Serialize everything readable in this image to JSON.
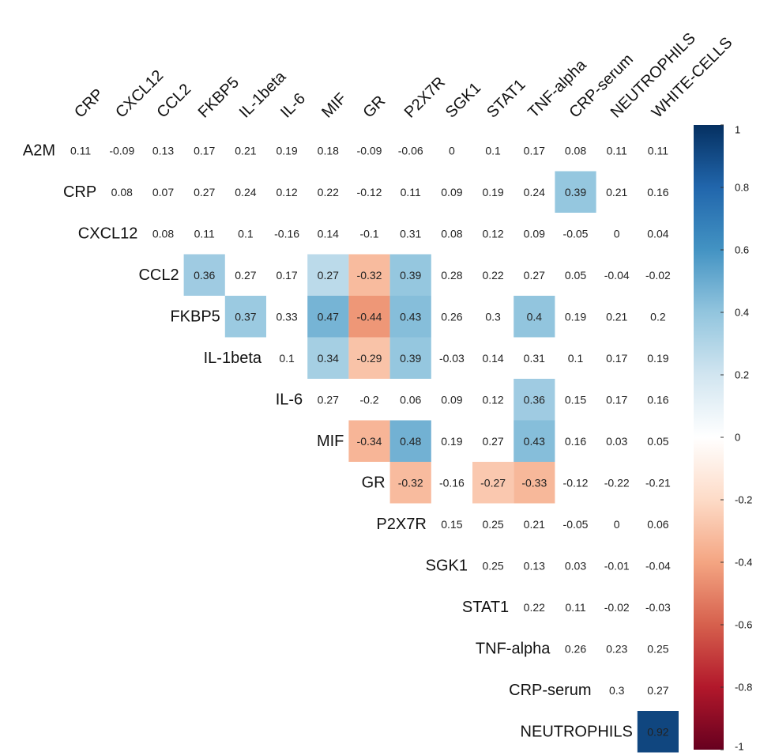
{
  "chart_data": {
    "type": "heatmap",
    "layout": "upper-triangle correlation matrix",
    "columns": [
      "CRP",
      "CXCL12",
      "CCL2",
      "FKBP5",
      "IL-1beta",
      "IL-6",
      "MIF",
      "GR",
      "P2X7R",
      "SGK1",
      "STAT1",
      "TNF-alpha",
      "CRP-serum",
      "NEUTROPHILS",
      "WHITE-CELLS"
    ],
    "rows": [
      "A2M",
      "CRP",
      "CXCL12",
      "CCL2",
      "FKBP5",
      "IL-1beta",
      "IL-6",
      "MIF",
      "GR",
      "P2X7R",
      "SGK1",
      "STAT1",
      "TNF-alpha",
      "CRP-serum",
      "NEUTROPHILS"
    ],
    "values": [
      [
        "0.11",
        "-0.09",
        "0.13",
        "0.17",
        "0.21",
        "0.19",
        "0.18",
        "-0.09",
        "-0.06",
        "0",
        "0.1",
        "0.17",
        "0.08",
        "0.11",
        "0.11"
      ],
      [
        "0.08",
        "0.07",
        "0.27",
        "0.24",
        "0.12",
        "0.22",
        "-0.12",
        "0.11",
        "0.09",
        "0.19",
        "0.24",
        "0.39",
        "0.21",
        "0.16"
      ],
      [
        "0.08",
        "0.11",
        "0.1",
        "-0.16",
        "0.14",
        "-0.1",
        "0.31",
        "0.08",
        "0.12",
        "0.09",
        "-0.05",
        "0",
        "0.04"
      ],
      [
        "0.36",
        "0.27",
        "0.17",
        "0.27",
        "-0.32",
        "0.39",
        "0.28",
        "0.22",
        "0.27",
        "0.05",
        "-0.04",
        "-0.02"
      ],
      [
        "0.37",
        "0.33",
        "0.47",
        "-0.44",
        "0.43",
        "0.26",
        "0.3",
        "0.4",
        "0.19",
        "0.21",
        "0.2"
      ],
      [
        "0.1",
        "0.34",
        "-0.29",
        "0.39",
        "-0.03",
        "0.14",
        "0.31",
        "0.1",
        "0.17",
        "0.19"
      ],
      [
        "0.27",
        "-0.2",
        "0.06",
        "0.09",
        "0.12",
        "0.36",
        "0.15",
        "0.17",
        "0.16"
      ],
      [
        "-0.34",
        "0.48",
        "0.19",
        "0.27",
        "0.43",
        "0.16",
        "0.03",
        "0.05"
      ],
      [
        "-0.32",
        "-0.16",
        "-0.27",
        "-0.33",
        "-0.12",
        "-0.22",
        "-0.21"
      ],
      [
        "0.15",
        "0.25",
        "0.21",
        "-0.05",
        "0",
        "0.06"
      ],
      [
        "0.25",
        "0.13",
        "0.03",
        "-0.01",
        "-0.04"
      ],
      [
        "0.22",
        "0.11",
        "-0.02",
        "-0.03"
      ],
      [
        "0.26",
        "0.23",
        "0.25"
      ],
      [
        "0.3",
        "0.27"
      ],
      [
        "0.92"
      ]
    ],
    "shaded_cells": [
      [
        1,
        12
      ],
      [
        3,
        3
      ],
      [
        3,
        6
      ],
      [
        3,
        7
      ],
      [
        3,
        8
      ],
      [
        4,
        4
      ],
      [
        4,
        6
      ],
      [
        4,
        7
      ],
      [
        4,
        8
      ],
      [
        4,
        11
      ],
      [
        5,
        6
      ],
      [
        5,
        7
      ],
      [
        5,
        8
      ],
      [
        6,
        11
      ],
      [
        7,
        7
      ],
      [
        7,
        8
      ],
      [
        7,
        11
      ],
      [
        8,
        8
      ],
      [
        8,
        10
      ],
      [
        8,
        11
      ],
      [
        14,
        14
      ]
    ],
    "colorbar": {
      "min": -1,
      "max": 1,
      "ticks": [
        "1",
        "0.8",
        "0.6",
        "0.4",
        "0.2",
        "0",
        "-0.2",
        "-0.4",
        "-0.6",
        "-0.8",
        "-1"
      ],
      "colors": [
        "#67001f",
        "#b2182b",
        "#d6604d",
        "#f4a582",
        "#fddbc7",
        "#ffffff",
        "#d1e5f0",
        "#92c5de",
        "#4393c3",
        "#2166ac",
        "#053061"
      ]
    }
  }
}
